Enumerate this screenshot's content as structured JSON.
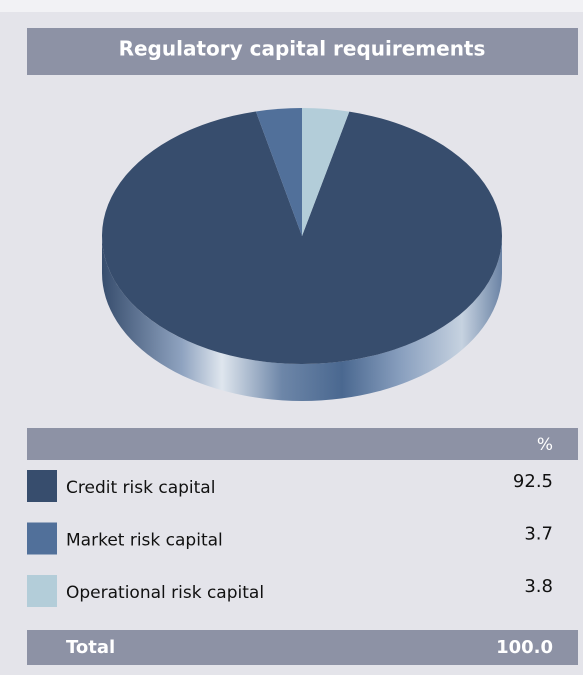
{
  "chart_data": {
    "type": "pie",
    "title": "Regulatory capital  requirements",
    "categories": [
      "Credit risk capital",
      "Market risk capital",
      "Operational risk capital"
    ],
    "values": [
      92.5,
      3.7,
      3.8
    ],
    "colors": [
      "#374d6d",
      "#51709a",
      "#b3cdd9"
    ],
    "value_header": "%",
    "total": {
      "label": "Total",
      "value_label": "100.0"
    }
  }
}
